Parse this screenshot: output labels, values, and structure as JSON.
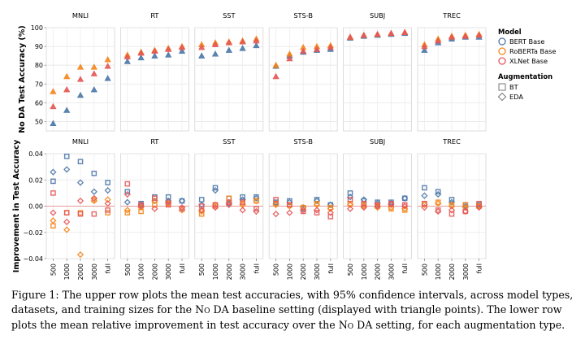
{
  "chart_data": {
    "type": "scatter",
    "x_categories": [
      "500",
      "1000",
      "2000",
      "3000",
      "full"
    ],
    "datasets": [
      "MNLI",
      "RT",
      "SST",
      "STS-B",
      "SUBJ",
      "TREC"
    ],
    "top": {
      "ylabel": "No DA Test Accuracy (%)",
      "ylim": [
        45,
        100
      ],
      "yticks": [
        "50",
        "60",
        "70",
        "80",
        "90",
        "100"
      ],
      "series": [
        {
          "model": "BERT Base",
          "values": {
            "MNLI": [
              49,
              56,
              64,
              67,
              73
            ],
            "RT": [
              82,
              84,
              85,
              85.5,
              87.5
            ],
            "SST": [
              85,
              86,
              88,
              89,
              90.5
            ],
            "STS-B": [
              79.5,
              85,
              87,
              88,
              88.5
            ],
            "SUBJ": [
              94.5,
              95.5,
              96,
              96.5,
              97
            ],
            "TREC": [
              88,
              92,
              94,
              95,
              95
            ]
          }
        },
        {
          "model": "RoBERTa Base",
          "values": {
            "MNLI": [
              66,
              74,
              79,
              79,
              83
            ],
            "RT": [
              85.5,
              87,
              88,
              89,
              90
            ],
            "SST": [
              91,
              92,
              92.5,
              93,
              94
            ],
            "STS-B": [
              80,
              86,
              89.5,
              90,
              90.5
            ],
            "SUBJ": [
              95,
              96,
              96.5,
              97,
              97.5
            ],
            "TREC": [
              91,
              94,
              95.5,
              96,
              96.5
            ]
          }
        },
        {
          "model": "XLNet Base",
          "values": {
            "MNLI": [
              58,
              67,
              72.5,
              75.5,
              79.5
            ],
            "RT": [
              84.5,
              86.5,
              87.5,
              88.5,
              89.5
            ],
            "SST": [
              89.5,
              91,
              92,
              92.5,
              93
            ],
            "STS-B": [
              74,
              83.5,
              87.5,
              88.5,
              89.5
            ],
            "SUBJ": [
              95,
              96,
              96.5,
              97,
              97.5
            ],
            "TREC": [
              90,
              93,
              95,
              95.5,
              96
            ]
          }
        }
      ]
    },
    "bottom": {
      "ylabel": "Improvement in Test Accuracy",
      "ylim": [
        -0.04,
        0.04
      ],
      "yticks": [
        "0.04",
        "0.02",
        "0.00",
        "−0.02",
        "−0.04"
      ],
      "series": [
        {
          "model": "BERT Base",
          "augmentation": "BT",
          "values": {
            "MNLI": [
              0.019,
              0.038,
              0.034,
              0.025,
              0.018
            ],
            "RT": [
              0.011,
              0.002,
              0.007,
              0.007,
              0.004
            ],
            "SST": [
              0.005,
              0.014,
              0.006,
              0.007,
              0.007
            ],
            "STS-B": [
              0.003,
              0.004,
              -0.002,
              0.005,
              0.001
            ],
            "SUBJ": [
              0.01,
              0.004,
              0.003,
              0.003,
              0.006
            ],
            "TREC": [
              0.014,
              0.011,
              0.005,
              0.001,
              0.001
            ]
          }
        },
        {
          "model": "BERT Base",
          "augmentation": "EDA",
          "values": {
            "MNLI": [
              0.026,
              0.028,
              0.018,
              0.011,
              0.012
            ],
            "RT": [
              0.003,
              0.001,
              0.004,
              0.004,
              0.004
            ],
            "SST": [
              0.001,
              0.012,
              0.002,
              0.005,
              0.006
            ],
            "STS-B": [
              0.002,
              0.003,
              -0.001,
              0.004,
              0.001
            ],
            "SUBJ": [
              0.007,
              0.005,
              0.002,
              0.002,
              0.006
            ],
            "TREC": [
              0.008,
              0.009,
              0.003,
              0.0,
              0.0
            ]
          }
        },
        {
          "model": "RoBERTa Base",
          "augmentation": "BT",
          "values": {
            "MNLI": [
              -0.015,
              -0.005,
              -0.005,
              0.005,
              -0.005
            ],
            "RT": [
              -0.005,
              -0.004,
              0.001,
              0.002,
              -0.002
            ],
            "SST": [
              -0.006,
              0.0,
              0.006,
              0.002,
              0.004
            ],
            "STS-B": [
              0.002,
              0.001,
              -0.001,
              0.002,
              -0.001
            ],
            "SUBJ": [
              0.002,
              0.001,
              0.0,
              -0.002,
              -0.003
            ],
            "TREC": [
              0.002,
              0.003,
              0.001,
              0.001,
              0.0
            ]
          }
        },
        {
          "model": "RoBERTa Base",
          "augmentation": "EDA",
          "values": {
            "MNLI": [
              -0.011,
              -0.018,
              -0.037,
              0.004,
              0.005
            ],
            "RT": [
              -0.003,
              -0.001,
              0.004,
              0.002,
              -0.003
            ],
            "SST": [
              -0.004,
              0.001,
              0.003,
              0.001,
              0.004
            ],
            "STS-B": [
              0.001,
              0.0,
              -0.001,
              0.001,
              -0.002
            ],
            "SUBJ": [
              0.001,
              0.0,
              -0.001,
              -0.001,
              -0.002
            ],
            "TREC": [
              0.001,
              0.002,
              0.0,
              -0.001,
              0.0
            ]
          }
        },
        {
          "model": "XLNet Base",
          "augmentation": "BT",
          "values": {
            "MNLI": [
              0.01,
              -0.005,
              -0.006,
              -0.006,
              -0.003
            ],
            "RT": [
              0.017,
              0.001,
              0.006,
              0.001,
              -0.002
            ],
            "SST": [
              0.0,
              0.001,
              0.003,
              0.003,
              -0.002
            ],
            "STS-B": [
              0.005,
              0.001,
              -0.004,
              -0.005,
              -0.008
            ],
            "SUBJ": [
              0.005,
              0.002,
              0.001,
              0.002,
              0.001
            ],
            "TREC": [
              0.002,
              -0.003,
              -0.006,
              -0.004,
              0.002
            ]
          }
        },
        {
          "model": "XLNet Base",
          "augmentation": "EDA",
          "values": {
            "MNLI": [
              -0.005,
              -0.012,
              0.004,
              0.006,
              0.002
            ],
            "RT": [
              0.009,
              0.0,
              -0.002,
              0.003,
              -0.001
            ],
            "SST": [
              -0.003,
              -0.001,
              0.001,
              -0.003,
              -0.004
            ],
            "STS-B": [
              -0.006,
              -0.005,
              -0.003,
              -0.003,
              -0.005
            ],
            "SUBJ": [
              -0.002,
              -0.001,
              0.0,
              0.001,
              0.0
            ],
            "TREC": [
              -0.001,
              -0.004,
              -0.003,
              -0.004,
              -0.001
            ]
          }
        }
      ]
    },
    "legend": {
      "placement": "right",
      "model_title": "Model",
      "models": [
        {
          "name": "BERT Base",
          "color": "#4c78a8"
        },
        {
          "name": "RoBERTa Base",
          "color": "#f58518"
        },
        {
          "name": "XLNet Base",
          "color": "#e45756"
        }
      ],
      "aug_title": "Augmentation",
      "augmentations": [
        {
          "name": "BT",
          "shape": "square"
        },
        {
          "name": "EDA",
          "shape": "diamond"
        }
      ]
    },
    "grid": true,
    "top_marker": "triangle"
  },
  "caption": {
    "p1": "Figure 1: The upper row plots the mean test accuracies, with 95% confidence intervals, across model types, datasets, and training sizes for the ",
    "sc1": "No DA",
    "p2": " baseline setting (displayed with triangle points). The lower row plots the mean relative improvement in test accuracy over the ",
    "sc2": "No DA",
    "p3": " setting, for each augmentation type."
  }
}
